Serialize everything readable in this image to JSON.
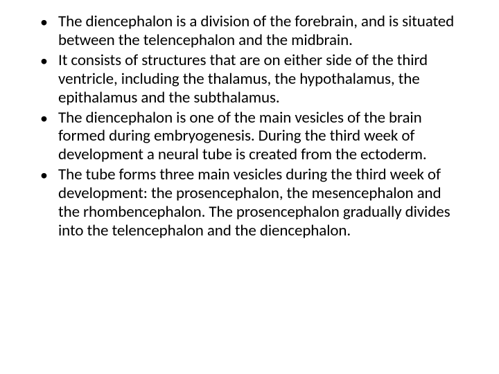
{
  "slide": {
    "background_color": "#ffffff",
    "text_color": "#000000",
    "font_family": "Calibri",
    "bullet_font_size": 23,
    "bullet_line_height": 1.17,
    "bullets": [
      {
        "text": "The diencephalon is a division of the forebrain, and is situated between the telencephalon and the midbrain."
      },
      {
        "text": "It consists of structures that are on either side of the third ventricle, including the thalamus, the hypothalamus, the epithalamus and the subthalamus."
      },
      {
        "text": "The diencephalon is one of the main vesicles of the brain formed during embryogenesis. During the third week of development a neural tube is created from the ectoderm."
      },
      {
        "text": "The tube forms three main vesicles during the third week of development: the prosencephalon, the mesencephalon and the rhombencephalon. The prosencephalon gradually divides into the telencephalon and the diencephalon."
      }
    ]
  }
}
